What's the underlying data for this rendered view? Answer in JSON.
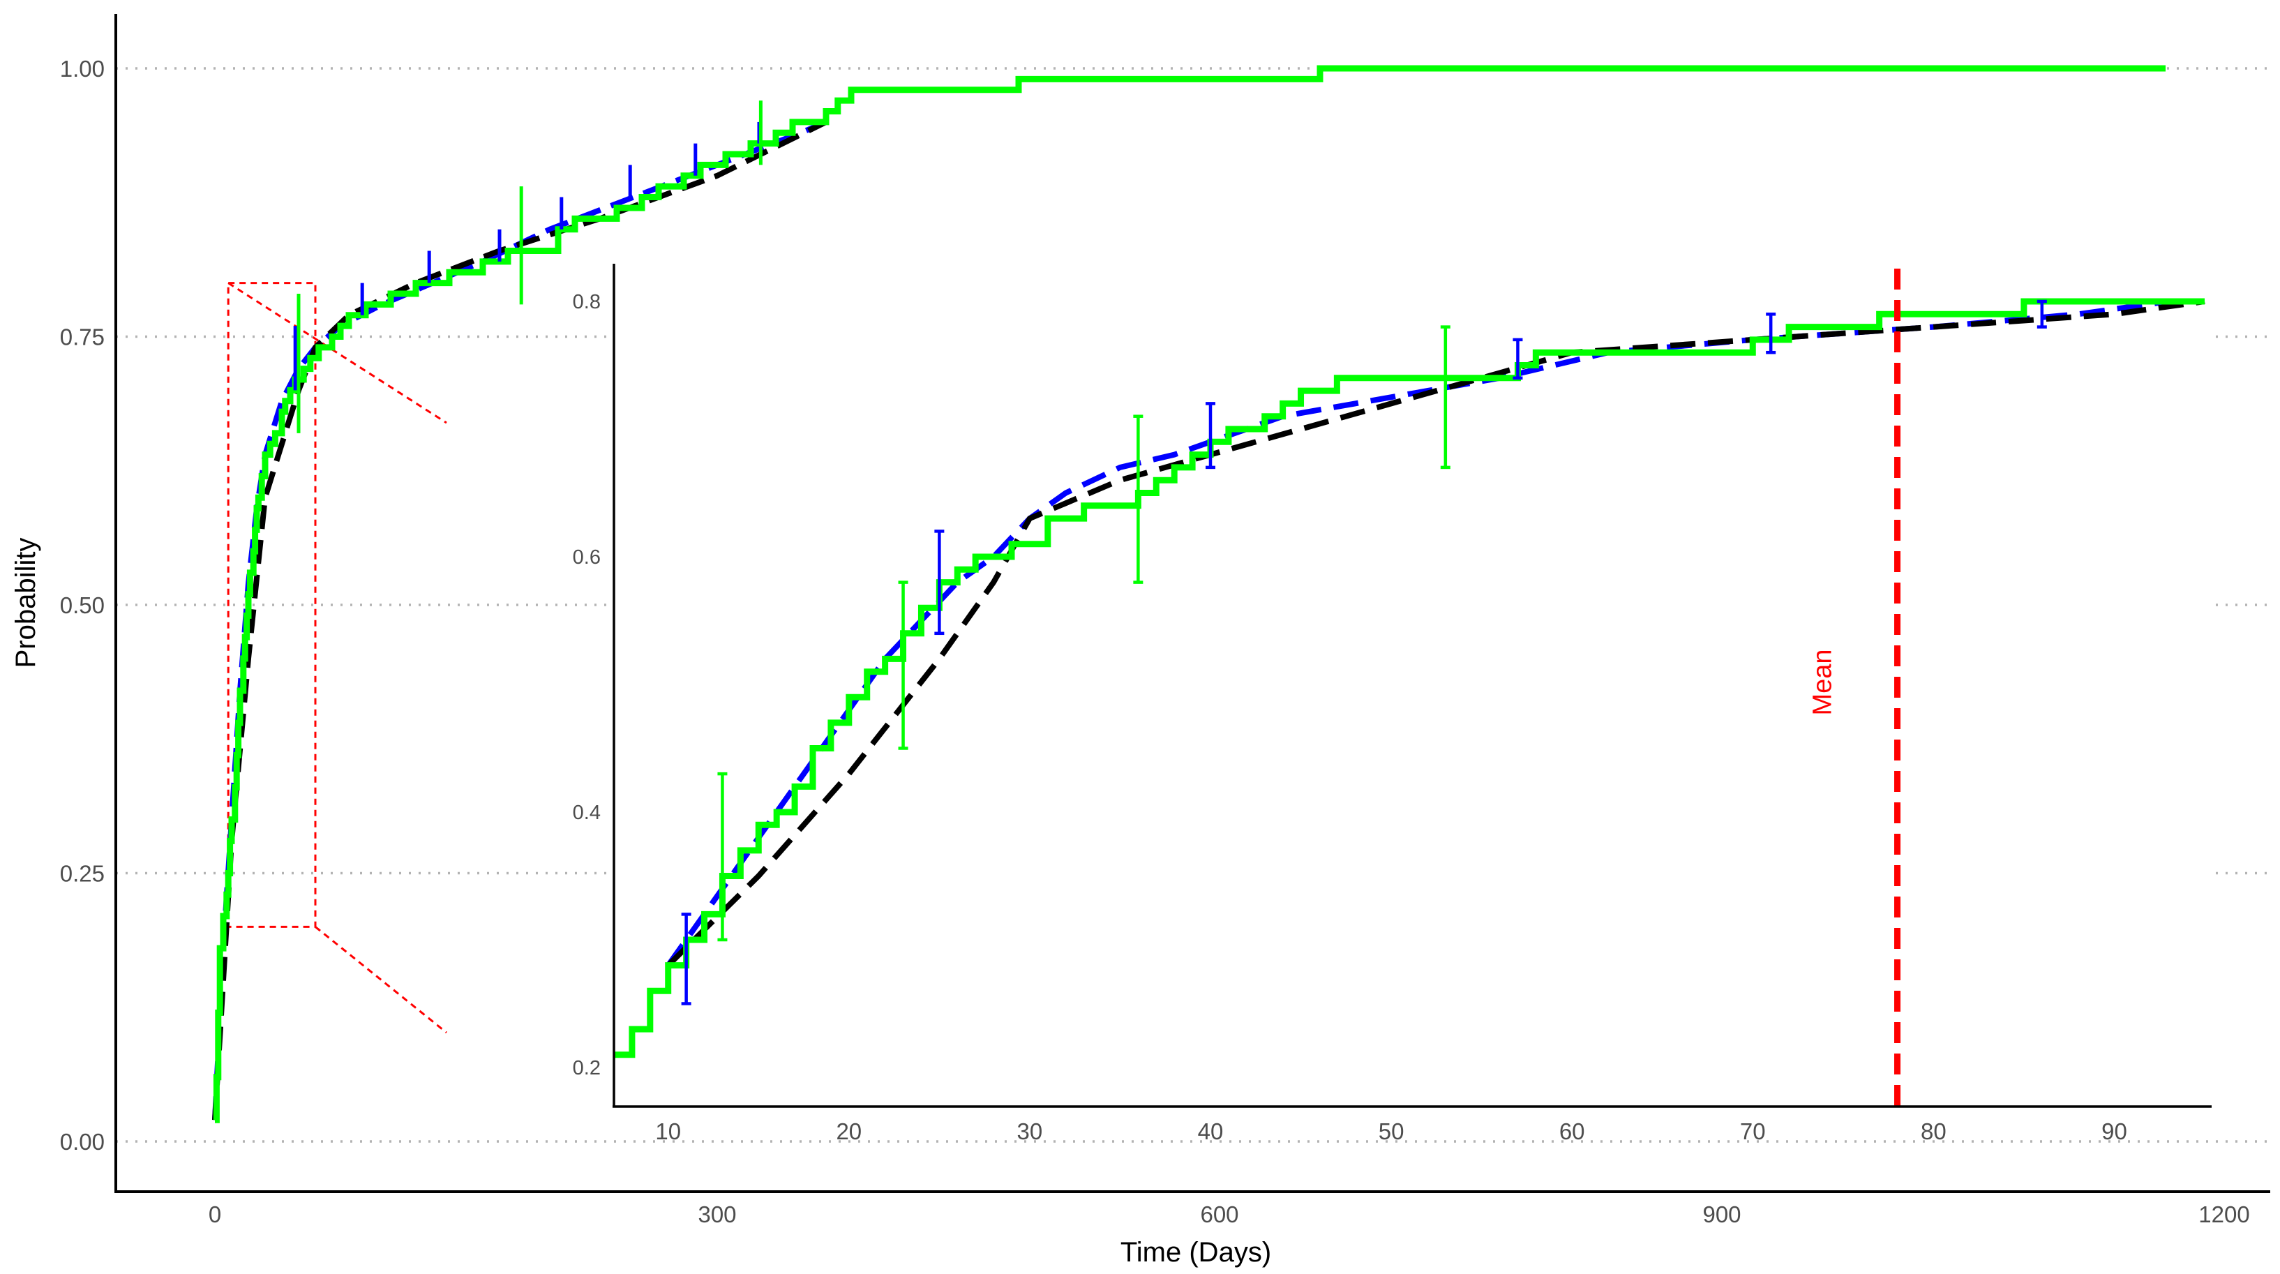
{
  "chart_data": {
    "type": "line",
    "main": {
      "xlabel": "Time (Days)",
      "ylabel": "Probability",
      "xlim": [
        -20,
        1230
      ],
      "ylim": [
        -0.05,
        1.05
      ],
      "xticks": [
        0,
        300,
        600,
        900,
        1200
      ],
      "xtick_labels": [
        "0",
        "300",
        "600",
        "900",
        "1200"
      ],
      "yticks": [
        0,
        0.25,
        0.5,
        0.75,
        1.0
      ],
      "ytick_labels": [
        "0.00",
        "0.25",
        "0.50",
        "0.75",
        "1.00"
      ],
      "grid": "horizontal dotted",
      "series": [
        {
          "style": "step",
          "color": "#00ff00",
          "points": [
            [
              0,
              0.02
            ],
            [
              1,
              0.06
            ],
            [
              2,
              0.12
            ],
            [
              3,
              0.18
            ],
            [
              5,
              0.21
            ],
            [
              7,
              0.23
            ],
            [
              8,
              0.25
            ],
            [
              9,
              0.28
            ],
            [
              10,
              0.3
            ],
            [
              12,
              0.33
            ],
            [
              13,
              0.36
            ],
            [
              14,
              0.39
            ],
            [
              15,
              0.42
            ],
            [
              17,
              0.45
            ],
            [
              18,
              0.47
            ],
            [
              19,
              0.49
            ],
            [
              20,
              0.51
            ],
            [
              21,
              0.53
            ],
            [
              23,
              0.55
            ],
            [
              24,
              0.57
            ],
            [
              25,
              0.59
            ],
            [
              26,
              0.6
            ],
            [
              28,
              0.62
            ],
            [
              30,
              0.64
            ],
            [
              33,
              0.65
            ],
            [
              36,
              0.66
            ],
            [
              40,
              0.68
            ],
            [
              42,
              0.69
            ],
            [
              45,
              0.7
            ],
            [
              48,
              0.71
            ],
            [
              53,
              0.72
            ],
            [
              57,
              0.73
            ],
            [
              62,
              0.74
            ],
            [
              70,
              0.75
            ],
            [
              75,
              0.76
            ],
            [
              80,
              0.77
            ],
            [
              90,
              0.78
            ],
            [
              105,
              0.79
            ],
            [
              120,
              0.8
            ],
            [
              140,
              0.81
            ],
            [
              160,
              0.82
            ],
            [
              175,
              0.83
            ],
            [
              190,
              0.83
            ],
            [
              205,
              0.85
            ],
            [
              215,
              0.86
            ],
            [
              240,
              0.87
            ],
            [
              255,
              0.88
            ],
            [
              265,
              0.89
            ],
            [
              280,
              0.9
            ],
            [
              290,
              0.91
            ],
            [
              305,
              0.92
            ],
            [
              320,
              0.93
            ],
            [
              335,
              0.94
            ],
            [
              345,
              0.95
            ],
            [
              355,
              0.95
            ],
            [
              365,
              0.96
            ],
            [
              372,
              0.97
            ],
            [
              380,
              0.98
            ],
            [
              420,
              0.98
            ],
            [
              480,
              0.99
            ],
            [
              650,
              0.99
            ],
            [
              660,
              1.0
            ],
            [
              1165,
              1.0
            ]
          ]
        },
        {
          "style": "dashed",
          "color": "#0000ff",
          "points": [
            [
              0,
              0.02
            ],
            [
              5,
              0.18
            ],
            [
              10,
              0.3
            ],
            [
              15,
              0.42
            ],
            [
              20,
              0.52
            ],
            [
              25,
              0.59
            ],
            [
              30,
              0.64
            ],
            [
              40,
              0.69
            ],
            [
              50,
              0.72
            ],
            [
              60,
              0.74
            ],
            [
              75,
              0.76
            ],
            [
              100,
              0.78
            ],
            [
              130,
              0.8
            ],
            [
              160,
              0.82
            ],
            [
              200,
              0.85
            ],
            [
              250,
              0.88
            ],
            [
              300,
              0.91
            ],
            [
              350,
              0.94
            ],
            [
              365,
              0.95
            ]
          ]
        },
        {
          "style": "dashed",
          "color": "#000000",
          "points": [
            [
              0,
              0.02
            ],
            [
              10,
              0.28
            ],
            [
              20,
              0.45
            ],
            [
              30,
              0.6
            ],
            [
              50,
              0.7
            ],
            [
              60,
              0.74
            ],
            [
              80,
              0.77
            ],
            [
              120,
              0.8
            ],
            [
              170,
              0.83
            ],
            [
              230,
              0.86
            ],
            [
              300,
              0.9
            ],
            [
              365,
              0.95
            ]
          ]
        }
      ],
      "error_bars": [
        {
          "color": "#0000ff",
          "x": 48,
          "low": 0.7,
          "high": 0.76
        },
        {
          "color": "#00ff00",
          "x": 50,
          "low": 0.66,
          "high": 0.79
        },
        {
          "color": "#0000ff",
          "x": 88,
          "low": 0.77,
          "high": 0.8
        },
        {
          "color": "#0000ff",
          "x": 128,
          "low": 0.8,
          "high": 0.83
        },
        {
          "color": "#0000ff",
          "x": 170,
          "low": 0.82,
          "high": 0.85
        },
        {
          "color": "#00ff00",
          "x": 183,
          "low": 0.78,
          "high": 0.89
        },
        {
          "color": "#0000ff",
          "x": 207,
          "low": 0.85,
          "high": 0.88
        },
        {
          "color": "#0000ff",
          "x": 248,
          "low": 0.88,
          "high": 0.91
        },
        {
          "color": "#0000ff",
          "x": 287,
          "low": 0.9,
          "high": 0.93
        },
        {
          "color": "#0000ff",
          "x": 325,
          "low": 0.93,
          "high": 0.95
        },
        {
          "color": "#00ff00",
          "x": 326,
          "low": 0.91,
          "high": 0.97
        }
      ],
      "zoom_box": {
        "x": [
          8,
          60
        ],
        "y": [
          0.2,
          0.8
        ],
        "color": "#ff0000"
      }
    },
    "inset": {
      "xlim": [
        7,
        95
      ],
      "ylim": [
        0.185,
        0.83
      ],
      "xticks": [
        10,
        20,
        30,
        40,
        50,
        60,
        70,
        80,
        90
      ],
      "xtick_labels": [
        "10",
        "20",
        "30",
        "40",
        "50",
        "60",
        "70",
        "80",
        "90"
      ],
      "yticks": [
        0.2,
        0.4,
        0.6,
        0.8
      ],
      "ytick_labels": [
        "0.2",
        "0.4",
        "0.6",
        "0.8"
      ],
      "series": [
        {
          "style": "step",
          "color": "#00ff00",
          "points": [
            [
              7,
              0.21
            ],
            [
              8,
              0.23
            ],
            [
              9,
              0.26
            ],
            [
              10,
              0.28
            ],
            [
              11,
              0.3
            ],
            [
              12,
              0.32
            ],
            [
              13,
              0.35
            ],
            [
              14,
              0.37
            ],
            [
              15,
              0.39
            ],
            [
              16,
              0.4
            ],
            [
              17,
              0.42
            ],
            [
              18,
              0.45
            ],
            [
              19,
              0.47
            ],
            [
              20,
              0.49
            ],
            [
              21,
              0.51
            ],
            [
              22,
              0.52
            ],
            [
              23,
              0.54
            ],
            [
              24,
              0.56
            ],
            [
              25,
              0.58
            ],
            [
              26,
              0.59
            ],
            [
              27,
              0.6
            ],
            [
              28,
              0.6
            ],
            [
              29,
              0.61
            ],
            [
              30,
              0.61
            ],
            [
              31,
              0.63
            ],
            [
              33,
              0.64
            ],
            [
              36,
              0.65
            ],
            [
              37,
              0.66
            ],
            [
              38,
              0.67
            ],
            [
              39,
              0.68
            ],
            [
              40,
              0.69
            ],
            [
              41,
              0.7
            ],
            [
              42,
              0.7
            ],
            [
              43,
              0.71
            ],
            [
              44,
              0.72
            ],
            [
              45,
              0.73
            ],
            [
              47,
              0.74
            ],
            [
              49,
              0.74
            ],
            [
              53,
              0.74
            ],
            [
              57,
              0.75
            ],
            [
              58,
              0.76
            ],
            [
              60,
              0.76
            ],
            [
              63,
              0.76
            ],
            [
              66,
              0.76
            ],
            [
              70,
              0.77
            ],
            [
              72,
              0.78
            ],
            [
              74,
              0.78
            ],
            [
              75,
              0.78
            ],
            [
              77,
              0.79
            ],
            [
              84,
              0.79
            ],
            [
              85,
              0.8
            ],
            [
              88,
              0.8
            ],
            [
              95,
              0.8
            ]
          ]
        },
        {
          "style": "dashed",
          "color": "#0000ff",
          "points": [
            [
              10,
              0.28
            ],
            [
              12,
              0.32
            ],
            [
              15,
              0.38
            ],
            [
              18,
              0.44
            ],
            [
              20,
              0.48
            ],
            [
              22,
              0.52
            ],
            [
              24,
              0.55
            ],
            [
              26,
              0.58
            ],
            [
              28,
              0.6
            ],
            [
              30,
              0.63
            ],
            [
              32,
              0.65
            ],
            [
              35,
              0.67
            ],
            [
              38,
              0.68
            ],
            [
              40,
              0.69
            ],
            [
              44,
              0.71
            ],
            [
              48,
              0.72
            ],
            [
              52,
              0.73
            ],
            [
              56,
              0.74
            ],
            [
              62,
              0.76
            ],
            [
              70,
              0.77
            ],
            [
              80,
              0.78
            ],
            [
              88,
              0.79
            ],
            [
              93,
              0.8
            ]
          ]
        },
        {
          "style": "dashed",
          "color": "#000000",
          "points": [
            [
              10,
              0.28
            ],
            [
              15,
              0.35
            ],
            [
              20,
              0.43
            ],
            [
              25,
              0.52
            ],
            [
              28,
              0.58
            ],
            [
              30,
              0.63
            ],
            [
              35,
              0.66
            ],
            [
              40,
              0.68
            ],
            [
              45,
              0.7
            ],
            [
              50,
              0.72
            ],
            [
              55,
              0.74
            ],
            [
              60,
              0.76
            ],
            [
              70,
              0.77
            ],
            [
              80,
              0.78
            ],
            [
              90,
              0.79
            ],
            [
              95,
              0.8
            ]
          ]
        }
      ],
      "error_bars": [
        {
          "color": "#0000ff",
          "x": 11,
          "low": 0.25,
          "high": 0.32
        },
        {
          "color": "#00ff00",
          "x": 13,
          "low": 0.3,
          "high": 0.43
        },
        {
          "color": "#00ff00",
          "x": 23,
          "low": 0.45,
          "high": 0.58
        },
        {
          "color": "#0000ff",
          "x": 25,
          "low": 0.54,
          "high": 0.62
        },
        {
          "color": "#00ff00",
          "x": 36,
          "low": 0.58,
          "high": 0.71
        },
        {
          "color": "#0000ff",
          "x": 40,
          "low": 0.67,
          "high": 0.72
        },
        {
          "color": "#00ff00",
          "x": 53,
          "low": 0.67,
          "high": 0.78
        },
        {
          "color": "#0000ff",
          "x": 57,
          "low": 0.74,
          "high": 0.77
        },
        {
          "color": "#0000ff",
          "x": 71,
          "low": 0.76,
          "high": 0.79
        },
        {
          "color": "#0000ff",
          "x": 86,
          "low": 0.78,
          "high": 0.8
        }
      ],
      "vline": {
        "x": 78,
        "label": "Mean",
        "color": "#ff0000"
      }
    }
  }
}
